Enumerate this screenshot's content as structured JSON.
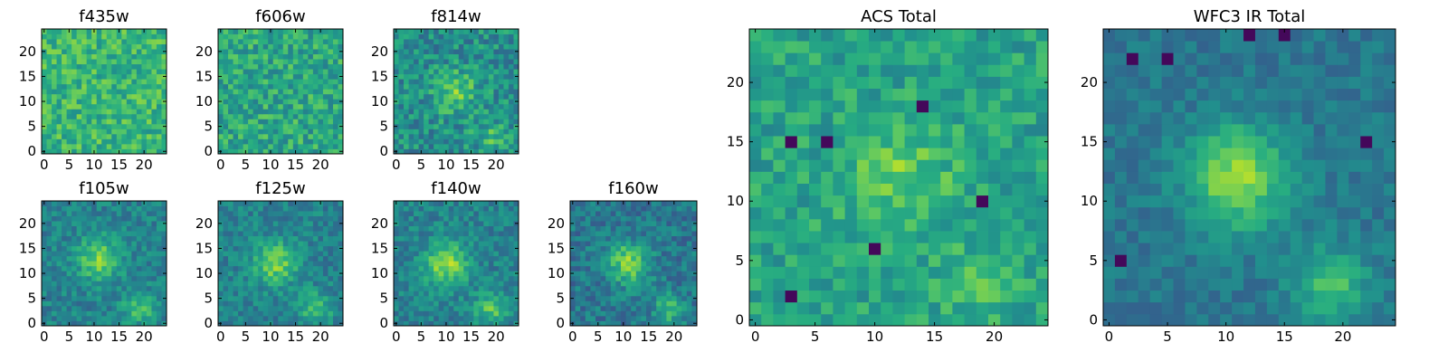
{
  "colormap": "viridis",
  "colors": {
    "low": "#440154",
    "mid": "#21918c",
    "high": "#fde725"
  },
  "chart_data": [
    {
      "type": "heatmap",
      "title": "f435w",
      "xlim": [
        0,
        24
      ],
      "ylim": [
        0,
        24
      ],
      "xticks": [
        0,
        5,
        10,
        15,
        20
      ],
      "yticks": [
        0,
        5,
        10,
        15,
        20
      ],
      "grid": false,
      "bright_center": null,
      "glow": 0.0,
      "base": 0.66,
      "noise": 0.16,
      "dark_spots": [],
      "seed": 11
    },
    {
      "type": "heatmap",
      "title": "f606w",
      "xlim": [
        0,
        24
      ],
      "ylim": [
        0,
        24
      ],
      "xticks": [
        0,
        5,
        10,
        15,
        20
      ],
      "yticks": [
        0,
        5,
        10,
        15,
        20
      ],
      "grid": false,
      "bright_center": null,
      "glow": 0.0,
      "base": 0.6,
      "noise": 0.17,
      "dark_spots": [],
      "seed": 23
    },
    {
      "type": "heatmap",
      "title": "f814w",
      "xlim": [
        0,
        24
      ],
      "ylim": [
        0,
        24
      ],
      "xticks": [
        0,
        5,
        10,
        15,
        20
      ],
      "yticks": [
        0,
        5,
        10,
        15,
        20
      ],
      "grid": false,
      "bright_center": [
        12,
        12
      ],
      "glow": 0.25,
      "base": 0.5,
      "noise": 0.17,
      "dark_spots": [],
      "seed": 37
    },
    {
      "type": "heatmap",
      "title": "f105w",
      "xlim": [
        0,
        24
      ],
      "ylim": [
        0,
        24
      ],
      "xticks": [
        0,
        5,
        10,
        15,
        20
      ],
      "yticks": [
        0,
        5,
        10,
        15,
        20
      ],
      "grid": false,
      "bright_center": [
        11,
        13
      ],
      "glow": 0.35,
      "base": 0.45,
      "noise": 0.12,
      "dark_spots": [],
      "seed": 41
    },
    {
      "type": "heatmap",
      "title": "f125w",
      "xlim": [
        0,
        24
      ],
      "ylim": [
        0,
        24
      ],
      "xticks": [
        0,
        5,
        10,
        15,
        20
      ],
      "yticks": [
        0,
        5,
        10,
        15,
        20
      ],
      "grid": false,
      "bright_center": [
        11,
        12
      ],
      "glow": 0.35,
      "base": 0.45,
      "noise": 0.12,
      "dark_spots": [],
      "seed": 53
    },
    {
      "type": "heatmap",
      "title": "f140w",
      "xlim": [
        0,
        24
      ],
      "ylim": [
        0,
        24
      ],
      "xticks": [
        0,
        5,
        10,
        15,
        20
      ],
      "yticks": [
        0,
        5,
        10,
        15,
        20
      ],
      "grid": false,
      "bright_center": [
        10,
        12
      ],
      "glow": 0.4,
      "base": 0.45,
      "noise": 0.12,
      "dark_spots": [],
      "seed": 67
    },
    {
      "type": "heatmap",
      "title": "f160w",
      "xlim": [
        0,
        24
      ],
      "ylim": [
        0,
        24
      ],
      "xticks": [
        0,
        5,
        10,
        15,
        20
      ],
      "yticks": [
        0,
        5,
        10,
        15,
        20
      ],
      "grid": false,
      "bright_center": [
        11,
        12
      ],
      "glow": 0.4,
      "base": 0.4,
      "noise": 0.13,
      "dark_spots": [],
      "seed": 71
    },
    {
      "type": "heatmap",
      "title": "ACS Total",
      "xlim": [
        0,
        24
      ],
      "ylim": [
        0,
        24
      ],
      "xticks": [
        0,
        5,
        10,
        15,
        20
      ],
      "yticks": [
        0,
        5,
        10,
        15,
        20
      ],
      "grid": false,
      "bright_center": [
        12,
        12
      ],
      "glow": 0.2,
      "base": 0.58,
      "noise": 0.13,
      "dark_spots": [
        [
          3,
          15
        ],
        [
          6,
          15
        ],
        [
          14,
          18
        ],
        [
          19,
          10
        ],
        [
          10,
          6
        ],
        [
          3,
          2
        ]
      ],
      "seed": 83
    },
    {
      "type": "heatmap",
      "title": "WFC3 IR Total",
      "xlim": [
        0,
        24
      ],
      "ylim": [
        0,
        24
      ],
      "xticks": [
        0,
        5,
        10,
        15,
        20
      ],
      "yticks": [
        0,
        5,
        10,
        15,
        20
      ],
      "grid": false,
      "bright_center": [
        11,
        12
      ],
      "glow": 0.45,
      "base": 0.4,
      "noise": 0.08,
      "dark_spots": [
        [
          2,
          22
        ],
        [
          5,
          22
        ],
        [
          22,
          15
        ],
        [
          1,
          5
        ],
        [
          12,
          24
        ],
        [
          15,
          24
        ]
      ],
      "seed": 97
    }
  ]
}
